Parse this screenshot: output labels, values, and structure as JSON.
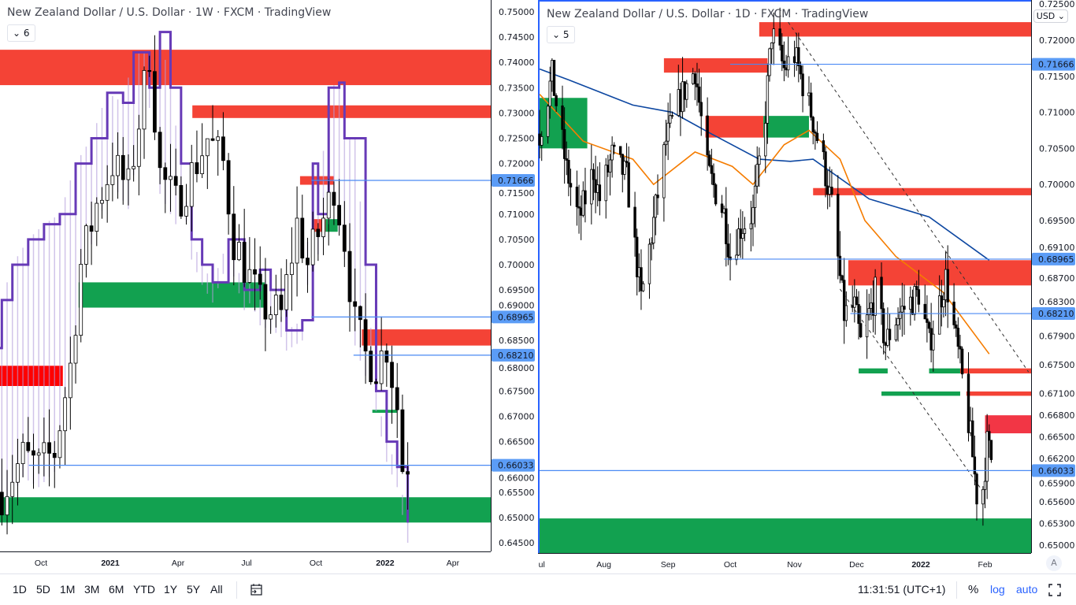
{
  "left_chart": {
    "title": "New Zealand Dollar / U.S. Dollar · 1W · FXCM · TradingView",
    "legend_toggle": "6",
    "price_ticks": [
      "0.75000",
      "0.74500",
      "0.74000",
      "0.73500",
      "0.73000",
      "0.72500",
      "0.72000",
      "0.71500",
      "0.71000",
      "0.70500",
      "0.70000",
      "0.69500",
      "0.69000",
      "0.68500",
      "0.68000",
      "0.67500",
      "0.67000",
      "0.66500",
      "0.66000",
      "0.65500",
      "0.65000",
      "0.64500"
    ],
    "time_ticks": [
      {
        "label": "Oct",
        "date": "2020-10-01",
        "bold": false
      },
      {
        "label": "2021",
        "date": "2021-01-01",
        "bold": true
      },
      {
        "label": "Apr",
        "date": "2021-04-01",
        "bold": false
      },
      {
        "label": "Jul",
        "date": "2021-07-01",
        "bold": false
      },
      {
        "label": "Oct",
        "date": "2021-10-01",
        "bold": false
      },
      {
        "label": "2022",
        "date": "2022-01-01",
        "bold": true
      },
      {
        "label": "Apr",
        "date": "2022-04-01",
        "bold": false
      }
    ],
    "level_labels": [
      "0.71666",
      "0.68965",
      "0.68210",
      "0.66033"
    ],
    "levels": [
      {
        "price": 0.71666,
        "from": "2021-09-25"
      },
      {
        "price": 0.68965,
        "from": "2021-09-25"
      },
      {
        "price": 0.6821,
        "from": "2021-11-20"
      },
      {
        "price": 0.66033,
        "from": "2020-09-15"
      }
    ],
    "zones": [
      {
        "top": 0.7425,
        "bottom": 0.7355,
        "from": "2020-08-01",
        "color": "#f44336"
      },
      {
        "top": 0.7315,
        "bottom": 0.729,
        "from": "2021-04-20",
        "color": "#f44336"
      },
      {
        "top": 0.7175,
        "bottom": 0.7158,
        "from": "2021-09-10",
        "to": "2021-10-25",
        "color": "#f44336"
      },
      {
        "top": 0.709,
        "bottom": 0.7065,
        "from": "2021-09-28",
        "to": "2021-10-14",
        "color": "#f44336"
      },
      {
        "top": 0.709,
        "bottom": 0.7065,
        "from": "2021-10-14",
        "to": "2021-10-30",
        "color": "#12a150"
      },
      {
        "top": 0.6965,
        "bottom": 0.6915,
        "from": "2020-11-20",
        "to": "2021-07-25",
        "color": "#12a150"
      },
      {
        "top": 0.6872,
        "bottom": 0.684,
        "from": "2021-12-01",
        "color": "#f44336"
      },
      {
        "top": 0.68,
        "bottom": 0.676,
        "from": "2020-08-01",
        "to": "2020-10-30",
        "color": "#f00"
      },
      {
        "top": 0.6713,
        "bottom": 0.6707,
        "from": "2021-12-15",
        "to": "2022-01-17",
        "color": "#12a150"
      },
      {
        "top": 0.654,
        "bottom": 0.649,
        "from": "2020-08-01",
        "color": "#12a150"
      }
    ],
    "price_path": [
      [
        "2020-08-10",
        0.655
      ],
      [
        "2020-09-07",
        0.662
      ],
      [
        "2020-09-28",
        0.66
      ],
      [
        "2020-10-19",
        0.663
      ],
      [
        "2020-11-09",
        0.68
      ],
      [
        "2020-11-23",
        0.7
      ],
      [
        "2020-12-14",
        0.712
      ],
      [
        "2021-01-04",
        0.72
      ],
      [
        "2021-01-25",
        0.715
      ],
      [
        "2021-02-15",
        0.735
      ],
      [
        "2021-02-22",
        0.742
      ],
      [
        "2021-03-08",
        0.718
      ],
      [
        "2021-03-29",
        0.712
      ],
      [
        "2021-04-19",
        0.718
      ],
      [
        "2021-05-10",
        0.725
      ],
      [
        "2021-05-31",
        0.72
      ],
      [
        "2021-06-14",
        0.705
      ],
      [
        "2021-06-28",
        0.7
      ],
      [
        "2021-07-19",
        0.692
      ],
      [
        "2021-08-16",
        0.69
      ],
      [
        "2021-09-06",
        0.708
      ],
      [
        "2021-09-20",
        0.7
      ],
      [
        "2021-10-18",
        0.712
      ],
      [
        "2021-10-25",
        0.716
      ],
      [
        "2021-11-08",
        0.705
      ],
      [
        "2021-11-22",
        0.688
      ],
      [
        "2021-12-06",
        0.682
      ],
      [
        "2021-12-20",
        0.68
      ],
      [
        "2022-01-03",
        0.684
      ],
      [
        "2022-01-17",
        0.672
      ],
      [
        "2022-01-24",
        0.66
      ],
      [
        "2022-01-31",
        0.661
      ]
    ],
    "indicator_path": [
      [
        "2020-08-03",
        0.6835
      ],
      [
        "2020-08-10",
        0.693
      ],
      [
        "2020-08-24",
        0.7
      ],
      [
        "2020-09-14",
        0.705
      ],
      [
        "2020-10-05",
        0.708
      ],
      [
        "2020-10-26",
        0.71
      ],
      [
        "2020-11-16",
        0.72
      ],
      [
        "2020-12-07",
        0.725
      ],
      [
        "2020-12-28",
        0.734
      ],
      [
        "2021-01-18",
        0.732
      ],
      [
        "2021-02-01",
        0.742
      ],
      [
        "2021-02-15",
        0.742
      ],
      [
        "2021-02-22",
        0.735
      ],
      [
        "2021-03-08",
        0.746
      ],
      [
        "2021-03-22",
        0.735
      ],
      [
        "2021-04-05",
        0.72
      ],
      [
        "2021-04-19",
        0.705
      ],
      [
        "2021-05-03",
        0.7
      ],
      [
        "2021-05-17",
        0.6965
      ],
      [
        "2021-06-07",
        0.705
      ],
      [
        "2021-06-28",
        0.695
      ],
      [
        "2021-07-19",
        0.699
      ],
      [
        "2021-08-02",
        0.695
      ],
      [
        "2021-08-23",
        0.687
      ],
      [
        "2021-09-13",
        0.689
      ],
      [
        "2021-09-27",
        0.72
      ],
      [
        "2021-10-04",
        0.71
      ],
      [
        "2021-10-18",
        0.735
      ],
      [
        "2021-11-01",
        0.736
      ],
      [
        "2021-11-08",
        0.725
      ],
      [
        "2021-11-22",
        0.725
      ],
      [
        "2021-12-06",
        0.7
      ],
      [
        "2021-12-20",
        0.675
      ],
      [
        "2022-01-03",
        0.665
      ],
      [
        "2022-01-17",
        0.66
      ],
      [
        "2022-01-31",
        0.649
      ]
    ]
  },
  "right_chart": {
    "title": "New Zealand Dollar / U.S. Dollar · 1D · FXCM · TradingView",
    "legend_toggle": "5",
    "currency": "USD",
    "auto_scale_button": "A",
    "price_ticks": [
      "0.72500",
      "0.72000",
      "0.71500",
      "0.71000",
      "0.70500",
      "0.70000",
      "0.69500",
      "0.69100",
      "0.68700",
      "0.68300",
      "0.67900",
      "0.67500",
      "0.67100",
      "0.66800",
      "0.66500",
      "0.66200",
      "0.65900",
      "0.65600",
      "0.65300",
      "0.65000"
    ],
    "time_ticks": [
      {
        "label": "Jul",
        "date": "2021-07-01",
        "bold": false
      },
      {
        "label": "Aug",
        "date": "2021-08-01",
        "bold": false
      },
      {
        "label": "Sep",
        "date": "2021-09-01",
        "bold": false
      },
      {
        "label": "Oct",
        "date": "2021-10-01",
        "bold": false
      },
      {
        "label": "Nov",
        "date": "2021-11-01",
        "bold": false
      },
      {
        "label": "Dec",
        "date": "2021-12-01",
        "bold": false
      },
      {
        "label": "2022",
        "date": "2022-01-01",
        "bold": true
      },
      {
        "label": "Feb",
        "date": "2022-02-01",
        "bold": false
      }
    ],
    "level_labels": [
      "0.71666",
      "0.68965",
      "0.68210",
      "0.66033"
    ],
    "levels": [
      {
        "price": 0.71666,
        "from": "2021-10-01"
      },
      {
        "price": 0.68965,
        "from": "2021-09-28"
      },
      {
        "price": 0.6821,
        "from": "2021-11-28"
      },
      {
        "price": 0.66033,
        "from": "2021-06-25"
      }
    ],
    "zones": [
      {
        "top": 0.7225,
        "bottom": 0.7205,
        "from": "2021-10-15",
        "color": "#f44336"
      },
      {
        "top": 0.7175,
        "bottom": 0.7155,
        "from": "2021-08-30",
        "to": "2021-10-19",
        "color": "#f44336"
      },
      {
        "top": 0.7095,
        "bottom": 0.7065,
        "from": "2021-09-19",
        "to": "2021-10-17",
        "color": "#f44336"
      },
      {
        "top": 0.7095,
        "bottom": 0.7065,
        "from": "2021-10-17",
        "to": "2021-11-08",
        "color": "#12a150"
      },
      {
        "top": 0.712,
        "bottom": 0.705,
        "from": "2021-06-25",
        "to": "2021-07-24",
        "color": "#12a150"
      },
      {
        "top": 0.6995,
        "bottom": 0.6985,
        "from": "2021-11-10",
        "color": "#f44336"
      },
      {
        "top": 0.6895,
        "bottom": 0.686,
        "from": "2021-11-27",
        "color": "#f44336"
      },
      {
        "top": 0.6745,
        "bottom": 0.6738,
        "from": "2021-12-02",
        "to": "2021-12-16",
        "color": "#12a150"
      },
      {
        "top": 0.6745,
        "bottom": 0.6738,
        "from": "2022-01-05",
        "to": "2022-01-20",
        "color": "#12a150"
      },
      {
        "top": 0.6745,
        "bottom": 0.6738,
        "from": "2022-01-20",
        "color": "#f44336"
      },
      {
        "top": 0.6713,
        "bottom": 0.6707,
        "from": "2021-12-13",
        "to": "2022-01-20",
        "color": "#12a150"
      },
      {
        "top": 0.6713,
        "bottom": 0.6707,
        "from": "2022-01-23",
        "color": "#f44336"
      },
      {
        "top": 0.668,
        "bottom": 0.6655,
        "from": "2022-02-01",
        "color": "#f23645"
      },
      {
        "top": 0.6537,
        "bottom": 0.646,
        "from": "2021-06-25",
        "color": "#12a150"
      }
    ],
    "trendlines": [
      [
        [
          "2021-10-29",
          0.7225
        ],
        [
          "2022-02-22",
          0.674
        ]
      ],
      [
        [
          "2021-11-23",
          0.6855
        ],
        [
          "2022-02-01",
          0.657
        ]
      ]
    ],
    "ma_blue": {
      "color": "#0d47a1",
      "points": [
        [
          "2021-07-01",
          0.716
        ],
        [
          "2021-07-15",
          0.7145
        ],
        [
          "2021-08-15",
          0.711
        ],
        [
          "2021-09-03",
          0.71
        ],
        [
          "2021-09-22",
          0.707
        ],
        [
          "2021-10-15",
          0.7035
        ],
        [
          "2021-10-30",
          0.7032
        ],
        [
          "2021-11-10",
          0.7035
        ],
        [
          "2021-12-07",
          0.698
        ],
        [
          "2022-01-05",
          0.6955
        ],
        [
          "2022-02-03",
          0.6895
        ]
      ]
    },
    "ma_orange": {
      "color": "#f57c00",
      "points": [
        [
          "2021-07-01",
          0.7125
        ],
        [
          "2021-07-22",
          0.706
        ],
        [
          "2021-08-15",
          0.7035
        ],
        [
          "2021-08-25",
          0.7
        ],
        [
          "2021-09-14",
          0.7045
        ],
        [
          "2021-10-02",
          0.7025
        ],
        [
          "2021-10-12",
          0.7
        ],
        [
          "2021-10-27",
          0.7055
        ],
        [
          "2021-11-08",
          0.7075
        ],
        [
          "2021-11-23",
          0.7035
        ],
        [
          "2021-12-05",
          0.695
        ],
        [
          "2021-12-20",
          0.69
        ],
        [
          "2022-01-12",
          0.685
        ],
        [
          "2022-02-03",
          0.6765
        ]
      ]
    },
    "price_path": [
      [
        "2021-07-01",
        0.707
      ],
      [
        "2021-07-07",
        0.715
      ],
      [
        "2021-07-14",
        0.702
      ],
      [
        "2021-07-20",
        0.695
      ],
      [
        "2021-07-27",
        0.702
      ],
      [
        "2021-07-30",
        0.698
      ],
      [
        "2021-08-05",
        0.704
      ],
      [
        "2021-08-12",
        0.701
      ],
      [
        "2021-08-19",
        0.684
      ],
      [
        "2021-08-24",
        0.693
      ],
      [
        "2021-08-31",
        0.706
      ],
      [
        "2021-09-07",
        0.712
      ],
      [
        "2021-09-14",
        0.716
      ],
      [
        "2021-09-20",
        0.702
      ],
      [
        "2021-09-28",
        0.696
      ],
      [
        "2021-10-01",
        0.69
      ],
      [
        "2021-10-06",
        0.694
      ],
      [
        "2021-10-12",
        0.696
      ],
      [
        "2021-10-18",
        0.71
      ],
      [
        "2021-10-21",
        0.721
      ],
      [
        "2021-10-27",
        0.716
      ],
      [
        "2021-11-01",
        0.718
      ],
      [
        "2021-11-05",
        0.714
      ],
      [
        "2021-11-09",
        0.71
      ],
      [
        "2021-11-15",
        0.703
      ],
      [
        "2021-11-19",
        0.697
      ],
      [
        "2021-11-25",
        0.682
      ],
      [
        "2021-11-30",
        0.683
      ],
      [
        "2021-12-03",
        0.678
      ],
      [
        "2021-12-10",
        0.685
      ],
      [
        "2021-12-15",
        0.678
      ],
      [
        "2021-12-21",
        0.682
      ],
      [
        "2021-12-28",
        0.684
      ],
      [
        "2021-12-31",
        0.685
      ],
      [
        "2022-01-05",
        0.678
      ],
      [
        "2022-01-13",
        0.687
      ],
      [
        "2022-01-17",
        0.68
      ],
      [
        "2022-01-20",
        0.675
      ],
      [
        "2022-01-25",
        0.665
      ],
      [
        "2022-01-28",
        0.657
      ],
      [
        "2022-01-31",
        0.658
      ],
      [
        "2022-02-02",
        0.664
      ],
      [
        "2022-02-04",
        0.662
      ]
    ]
  },
  "bottom_bar": {
    "ranges": [
      "1D",
      "5D",
      "1M",
      "3M",
      "6M",
      "YTD",
      "1Y",
      "5Y",
      "All"
    ],
    "date_range_icon": "calendar-goto-icon",
    "clock": "11:31:51 (UTC+1)",
    "percent": "%",
    "log": "log",
    "auto": "auto",
    "fullscreen_icon": "fullscreen-icon"
  },
  "colors": {
    "level_line": "#4a8af4",
    "level_label_bg": "#5b9cf6",
    "accent": "#2962ff",
    "purple": "#673ab7",
    "hatch": "#b39ddb"
  }
}
